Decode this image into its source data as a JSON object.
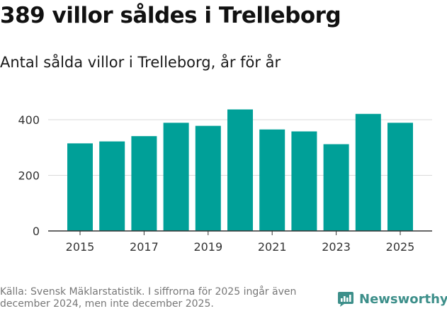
{
  "header": {
    "title": "389 villor såldes i Trelleborg",
    "subtitle": "Antal sålda villor i Trelleborg, år för år"
  },
  "footer": {
    "source": "Källa: Svensk Mäklarstatistik. I siffrorna för 2025 ingår även december 2024, men inte december 2025.",
    "logo_text": "Newsworthy"
  },
  "colors": {
    "bar": "#00a098",
    "grid": "#d9d9d9",
    "axis": "#333333",
    "logo": "#3d8f8a"
  },
  "chart_data": {
    "type": "bar",
    "title": "Antal sålda villor i Trelleborg, år för år",
    "xlabel": "",
    "ylabel": "",
    "categories": [
      "2015",
      "2016",
      "2017",
      "2018",
      "2019",
      "2020",
      "2021",
      "2022",
      "2023",
      "2024",
      "2025"
    ],
    "values": [
      315,
      322,
      341,
      389,
      378,
      437,
      365,
      358,
      312,
      421,
      389
    ],
    "ylim": [
      0,
      450
    ],
    "y_ticks": [
      0,
      200,
      400
    ],
    "x_tick_labels": [
      "2015",
      "2017",
      "2019",
      "2021",
      "2023",
      "2025"
    ],
    "grid": true
  }
}
